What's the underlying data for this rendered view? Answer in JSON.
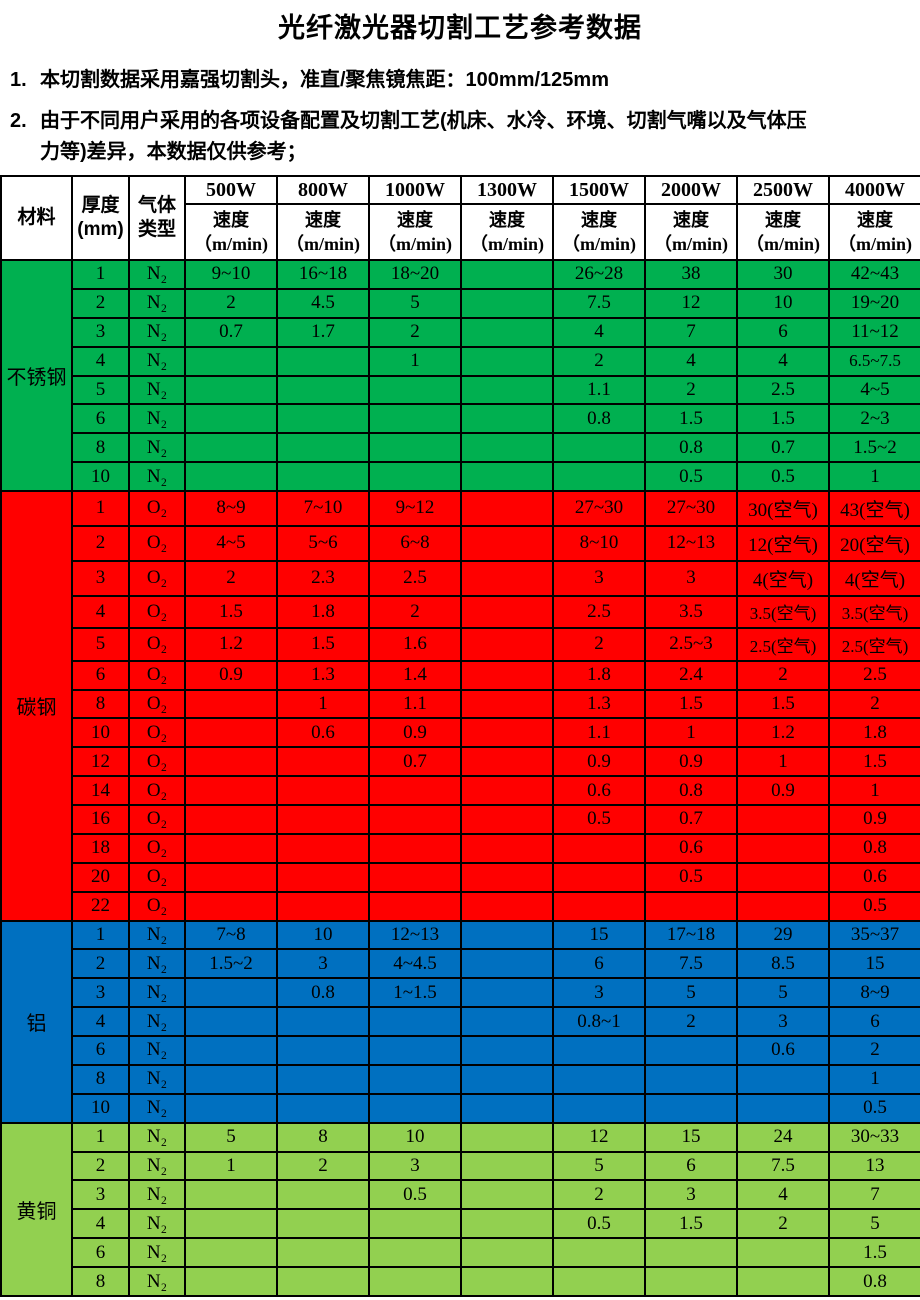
{
  "title": "光纤激光器切割工艺参考数据",
  "notes": [
    {
      "num": "1.",
      "text": "本切割数据采用嘉强切割头，准直/聚焦镜焦距：100mm/125mm"
    },
    {
      "num": "2.",
      "text": "由于不同用户采用的各项设备配置及切割工艺(机床、水冷、环境、切割气嘴以及气体压\n力等)差异，本数据仅供参考；"
    }
  ],
  "table": {
    "header": {
      "material": "材料",
      "thickness": "厚度\n(mm)",
      "gas": "气体\n类型",
      "powers": [
        "500W",
        "800W",
        "1000W",
        "1300W",
        "1500W",
        "2000W",
        "2500W",
        "4000W"
      ],
      "speed_label": "速度",
      "speed_unit": "（m/min)"
    },
    "sections": [
      {
        "material": "不锈钢",
        "color": "#00B050",
        "rows": [
          {
            "thickness": "1",
            "gas": "N₂",
            "speeds": [
              "9~10",
              "16~18",
              "18~20",
              "",
              "26~28",
              "38",
              "30",
              "42~43"
            ]
          },
          {
            "thickness": "2",
            "gas": "N₂",
            "speeds": [
              "2",
              "4.5",
              "5",
              "",
              "7.5",
              "12",
              "10",
              "19~20"
            ]
          },
          {
            "thickness": "3",
            "gas": "N₂",
            "speeds": [
              "0.7",
              "1.7",
              "2",
              "",
              "4",
              "7",
              "6",
              "11~12"
            ]
          },
          {
            "thickness": "4",
            "gas": "N₂",
            "speeds": [
              "",
              "",
              "1",
              "",
              "2",
              "4",
              "4",
              "6.5~7.5"
            ]
          },
          {
            "thickness": "5",
            "gas": "N₂",
            "speeds": [
              "",
              "",
              "",
              "",
              "1.1",
              "2",
              "2.5",
              "4~5"
            ]
          },
          {
            "thickness": "6",
            "gas": "N₂",
            "speeds": [
              "",
              "",
              "",
              "",
              "0.8",
              "1.5",
              "1.5",
              "2~3"
            ]
          },
          {
            "thickness": "8",
            "gas": "N₂",
            "speeds": [
              "",
              "",
              "",
              "",
              "",
              "0.8",
              "0.7",
              "1.5~2"
            ]
          },
          {
            "thickness": "10",
            "gas": "N₂",
            "speeds": [
              "",
              "",
              "",
              "",
              "",
              "0.5",
              "0.5",
              "1"
            ]
          }
        ]
      },
      {
        "material": "碳钢",
        "color": "#FF0000",
        "rows": [
          {
            "thickness": "1",
            "gas": "O₂",
            "speeds": [
              "8~9",
              "7~10",
              "9~12",
              "",
              "27~30",
              "27~30",
              "30(空气)",
              "43(空气)"
            ]
          },
          {
            "thickness": "2",
            "gas": "O₂",
            "speeds": [
              "4~5",
              "5~6",
              "6~8",
              "",
              "8~10",
              "12~13",
              "12(空气)",
              "20(空气)"
            ]
          },
          {
            "thickness": "3",
            "gas": "O₂",
            "speeds": [
              "2",
              "2.3",
              "2.5",
              "",
              "3",
              "3",
              "4(空气)",
              "4(空气)"
            ]
          },
          {
            "thickness": "4",
            "gas": "O₂",
            "speeds": [
              "1.5",
              "1.8",
              "2",
              "",
              "2.5",
              "3.5",
              "3.5(空气)",
              "3.5(空气)"
            ]
          },
          {
            "thickness": "5",
            "gas": "O₂",
            "speeds": [
              "1.2",
              "1.5",
              "1.6",
              "",
              "2",
              "2.5~3",
              "2.5(空气)",
              "2.5(空气)"
            ]
          },
          {
            "thickness": "6",
            "gas": "O₂",
            "speeds": [
              "0.9",
              "1.3",
              "1.4",
              "",
              "1.8",
              "2.4",
              "2",
              "2.5"
            ]
          },
          {
            "thickness": "8",
            "gas": "O₂",
            "speeds": [
              "",
              "1",
              "1.1",
              "",
              "1.3",
              "1.5",
              "1.5",
              "2"
            ]
          },
          {
            "thickness": "10",
            "gas": "O₂",
            "speeds": [
              "",
              "0.6",
              "0.9",
              "",
              "1.1",
              "1",
              "1.2",
              "1.8"
            ]
          },
          {
            "thickness": "12",
            "gas": "O₂",
            "speeds": [
              "",
              "",
              "0.7",
              "",
              "0.9",
              "0.9",
              "1",
              "1.5"
            ]
          },
          {
            "thickness": "14",
            "gas": "O₂",
            "speeds": [
              "",
              "",
              "",
              "",
              "0.6",
              "0.8",
              "0.9",
              "1"
            ]
          },
          {
            "thickness": "16",
            "gas": "O₂",
            "speeds": [
              "",
              "",
              "",
              "",
              "0.5",
              "0.7",
              "",
              "0.9"
            ]
          },
          {
            "thickness": "18",
            "gas": "O₂",
            "speeds": [
              "",
              "",
              "",
              "",
              "",
              "0.6",
              "",
              "0.8"
            ]
          },
          {
            "thickness": "20",
            "gas": "O₂",
            "speeds": [
              "",
              "",
              "",
              "",
              "",
              "0.5",
              "",
              "0.6"
            ]
          },
          {
            "thickness": "22",
            "gas": "O₂",
            "speeds": [
              "",
              "",
              "",
              "",
              "",
              "",
              "",
              "0.5"
            ]
          }
        ]
      },
      {
        "material": "铝",
        "color": "#0070C0",
        "rows": [
          {
            "thickness": "1",
            "gas": "N₂",
            "speeds": [
              "7~8",
              "10",
              "12~13",
              "",
              "15",
              "17~18",
              "29",
              "35~37"
            ]
          },
          {
            "thickness": "2",
            "gas": "N₂",
            "speeds": [
              "1.5~2",
              "3",
              "4~4.5",
              "",
              "6",
              "7.5",
              "8.5",
              "15"
            ]
          },
          {
            "thickness": "3",
            "gas": "N₂",
            "speeds": [
              "",
              "0.8",
              "1~1.5",
              "",
              "3",
              "5",
              "5",
              "8~9"
            ]
          },
          {
            "thickness": "4",
            "gas": "N₂",
            "speeds": [
              "",
              "",
              "",
              "",
              "0.8~1",
              "2",
              "3",
              "6"
            ]
          },
          {
            "thickness": "6",
            "gas": "N₂",
            "speeds": [
              "",
              "",
              "",
              "",
              "",
              "",
              "0.6",
              "2"
            ]
          },
          {
            "thickness": "8",
            "gas": "N₂",
            "speeds": [
              "",
              "",
              "",
              "",
              "",
              "",
              "",
              "1"
            ]
          },
          {
            "thickness": "10",
            "gas": "N₂",
            "speeds": [
              "",
              "",
              "",
              "",
              "",
              "",
              "",
              "0.5"
            ]
          }
        ]
      },
      {
        "material": "黄铜",
        "color": "#92D050",
        "rows": [
          {
            "thickness": "1",
            "gas": "N₂",
            "speeds": [
              "5",
              "8",
              "10",
              "",
              "12",
              "15",
              "24",
              "30~33"
            ]
          },
          {
            "thickness": "2",
            "gas": "N₂",
            "speeds": [
              "1",
              "2",
              "3",
              "",
              "5",
              "6",
              "7.5",
              "13"
            ]
          },
          {
            "thickness": "3",
            "gas": "N₂",
            "speeds": [
              "",
              "",
              "0.5",
              "",
              "2",
              "3",
              "4",
              "7"
            ]
          },
          {
            "thickness": "4",
            "gas": "N₂",
            "speeds": [
              "",
              "",
              "",
              "",
              "0.5",
              "1.5",
              "2",
              "5"
            ]
          },
          {
            "thickness": "6",
            "gas": "N₂",
            "speeds": [
              "",
              "",
              "",
              "",
              "",
              "",
              "",
              "1.5"
            ]
          },
          {
            "thickness": "8",
            "gas": "N₂",
            "speeds": [
              "",
              "",
              "",
              "",
              "",
              "",
              "",
              "0.8"
            ]
          }
        ]
      }
    ]
  }
}
